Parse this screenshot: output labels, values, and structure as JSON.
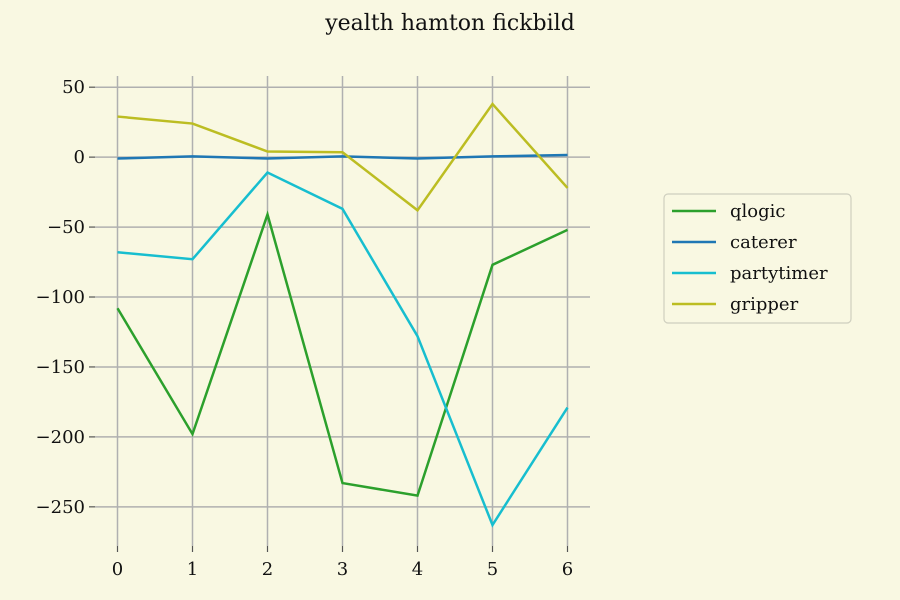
{
  "chart_data": {
    "type": "line",
    "title": "yealth hamton fickbild",
    "xlabel": "",
    "ylabel": "",
    "x": [
      0,
      1,
      2,
      3,
      4,
      5,
      6
    ],
    "xlim": [
      -0.3,
      6.3
    ],
    "ylim": [
      -278,
      58
    ],
    "xticks": [
      0,
      1,
      2,
      3,
      4,
      5,
      6
    ],
    "yticks": [
      50,
      0,
      -50,
      -100,
      -150,
      -200,
      -250
    ],
    "ytick_labels": [
      "50",
      "0",
      "−50",
      "−100",
      "−150",
      "−200",
      "−250"
    ],
    "grid": true,
    "legend_position": "right",
    "series": [
      {
        "name": "qlogic",
        "color": "#2ca02c",
        "values": [
          -108,
          -198,
          -41,
          -233,
          -242,
          -77,
          -52
        ]
      },
      {
        "name": "caterer",
        "color": "#1f77b4",
        "values": [
          -1,
          0.5,
          -1,
          0.5,
          -1,
          0.5,
          1.5
        ]
      },
      {
        "name": "partytimer",
        "color": "#17becf",
        "values": [
          -68,
          -73,
          -11,
          -37,
          -128,
          -263,
          -179
        ]
      },
      {
        "name": "gripper",
        "color": "#bcbd22",
        "values": [
          29,
          24,
          4,
          3.5,
          -38,
          38,
          -22
        ]
      }
    ]
  }
}
